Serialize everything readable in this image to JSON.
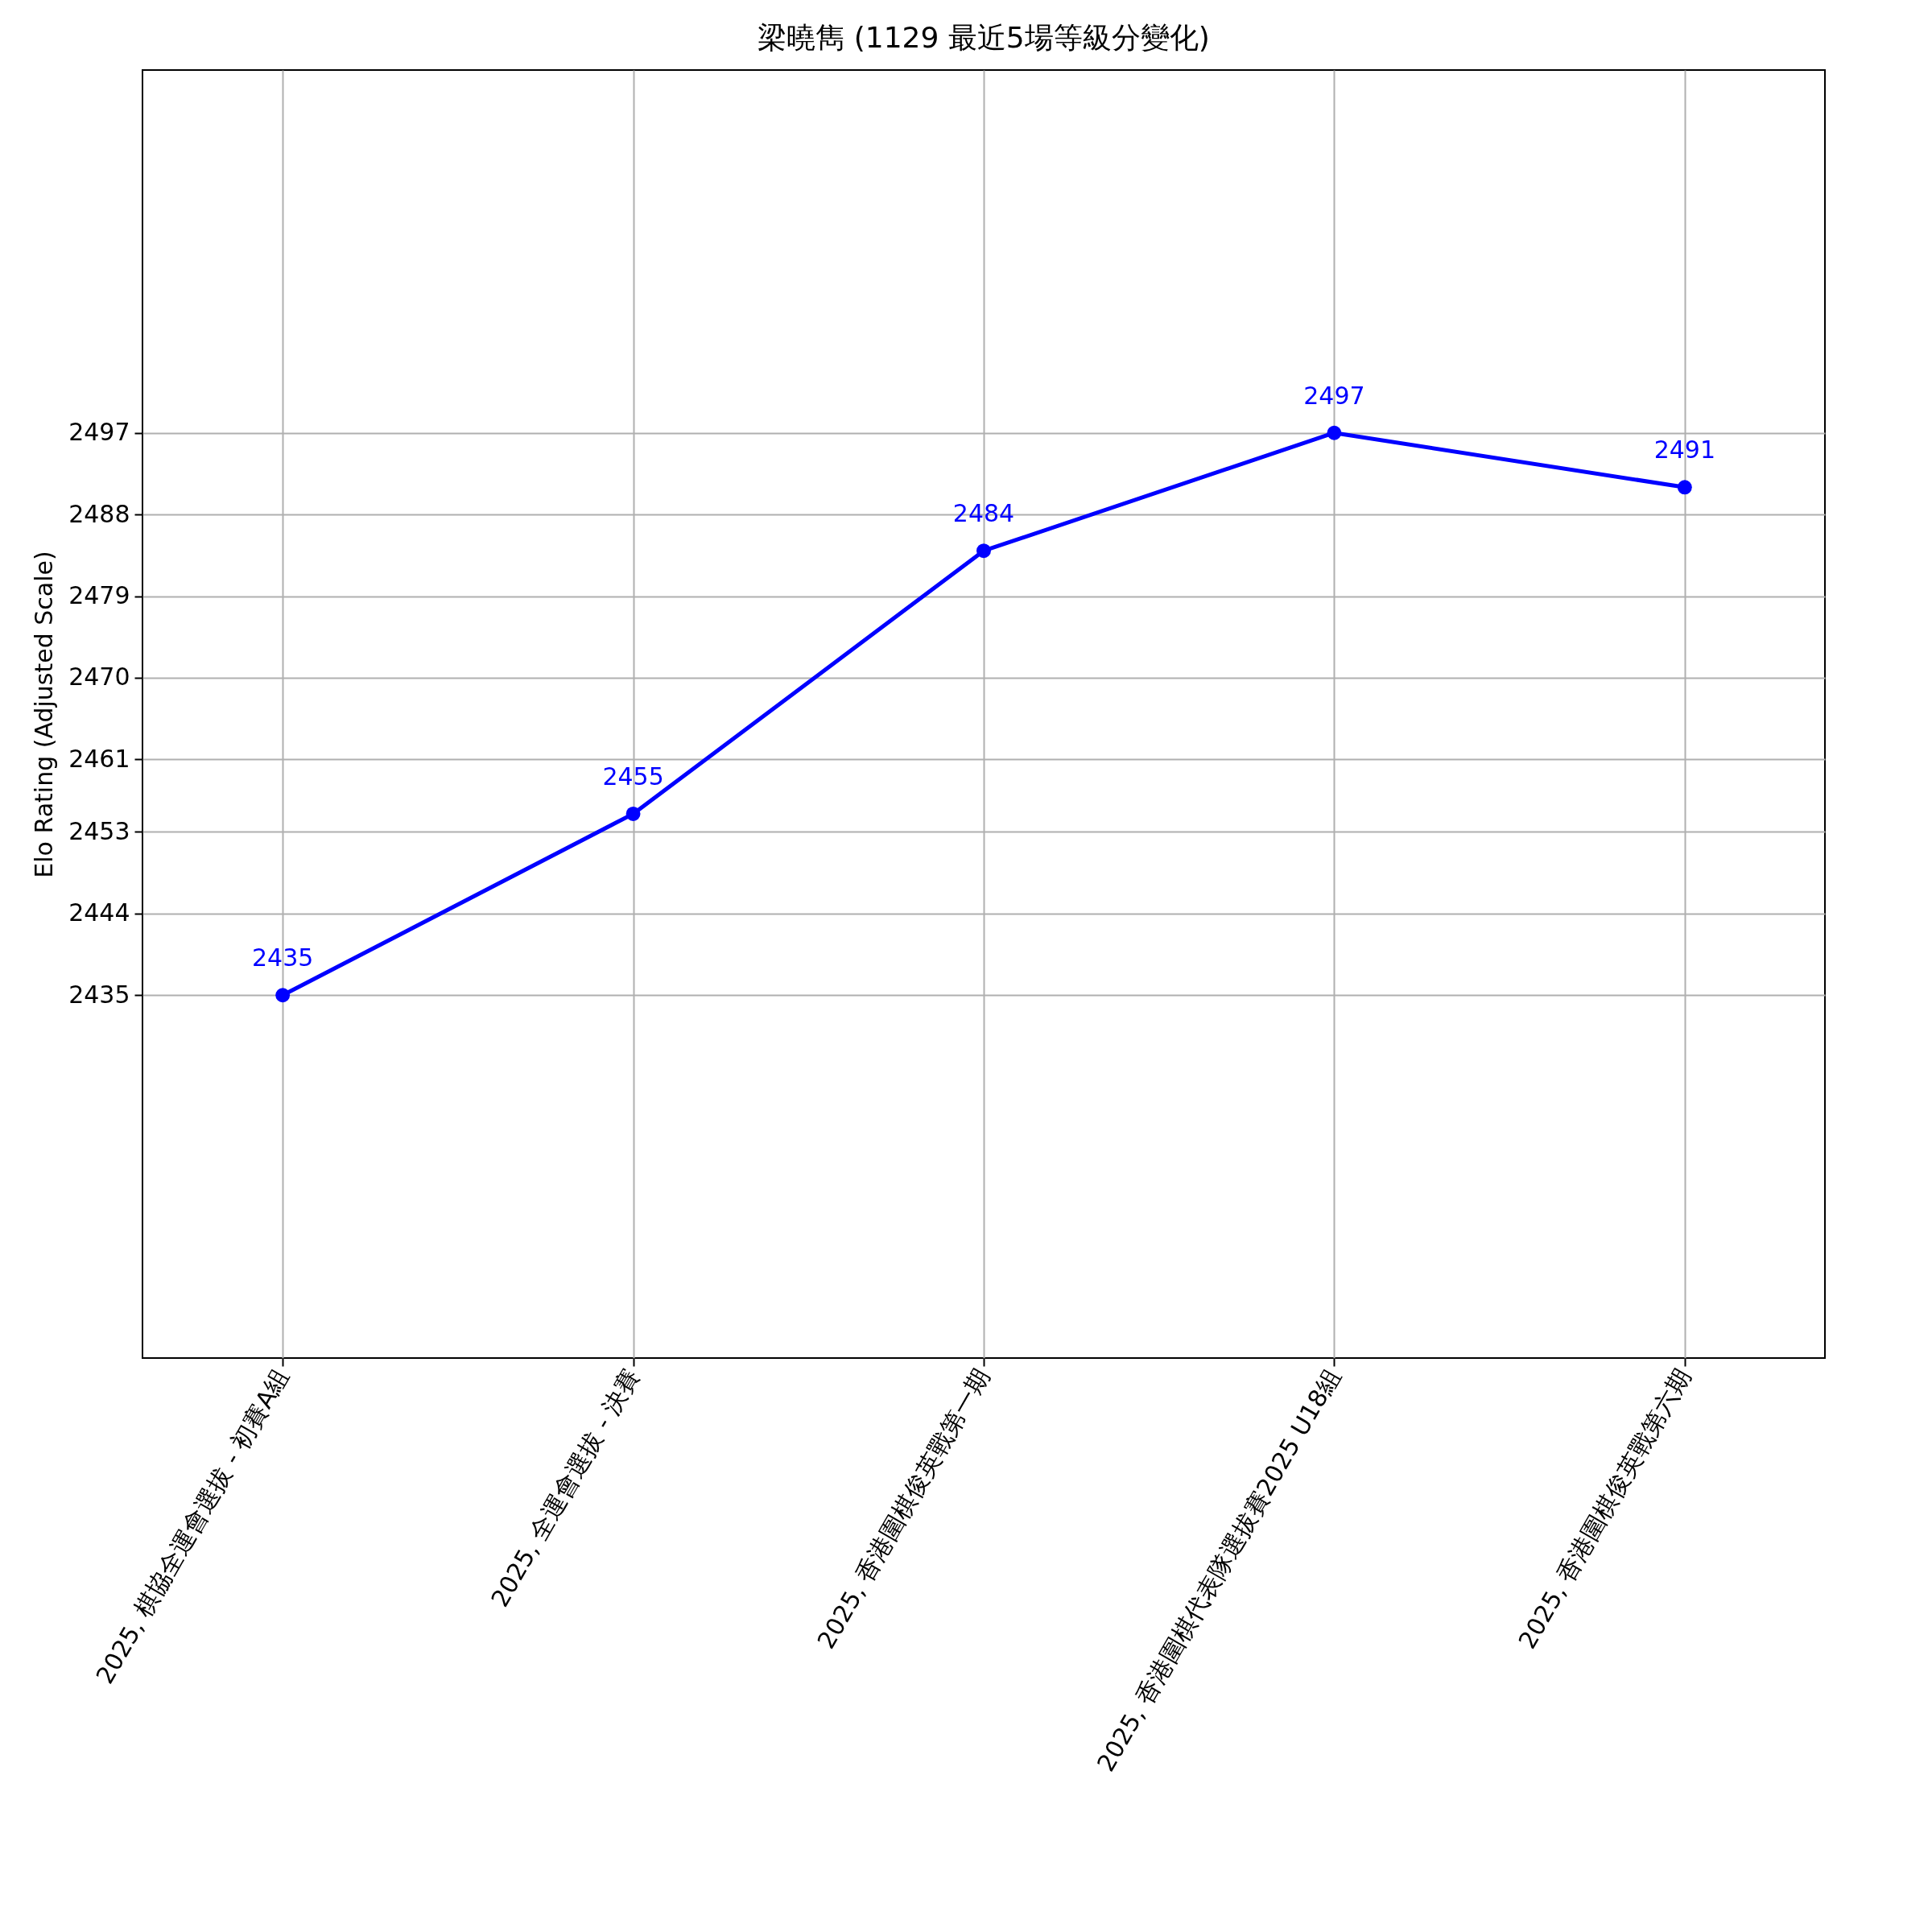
{
  "chart_data": {
    "type": "line",
    "title": "梁曉雋 (1129 最近5場等級分變化)",
    "ylabel": "Elo Rating (Adjusted Scale)",
    "categories": [
      "2025, 棋協全運會選拔 - 初賽A組",
      "2025, 全運會選拔 - 決賽",
      "2025, 香港圍棋俊英戰第一期",
      "2025, 香港圍棋代表隊選拔賽2025 U18組",
      "2025, 香港圍棋俊英戰第六期"
    ],
    "series": [
      {
        "color": "#0000ff",
        "values": [
          2435,
          2455,
          2484,
          2497,
          2491
        ]
      }
    ],
    "ylim": [
      2395,
      2537
    ],
    "yticks": [
      2435,
      2444,
      2453,
      2461,
      2470,
      2479,
      2488,
      2497
    ],
    "grid": true,
    "marker": "circle",
    "line_style": "solid",
    "data_labels": true
  }
}
